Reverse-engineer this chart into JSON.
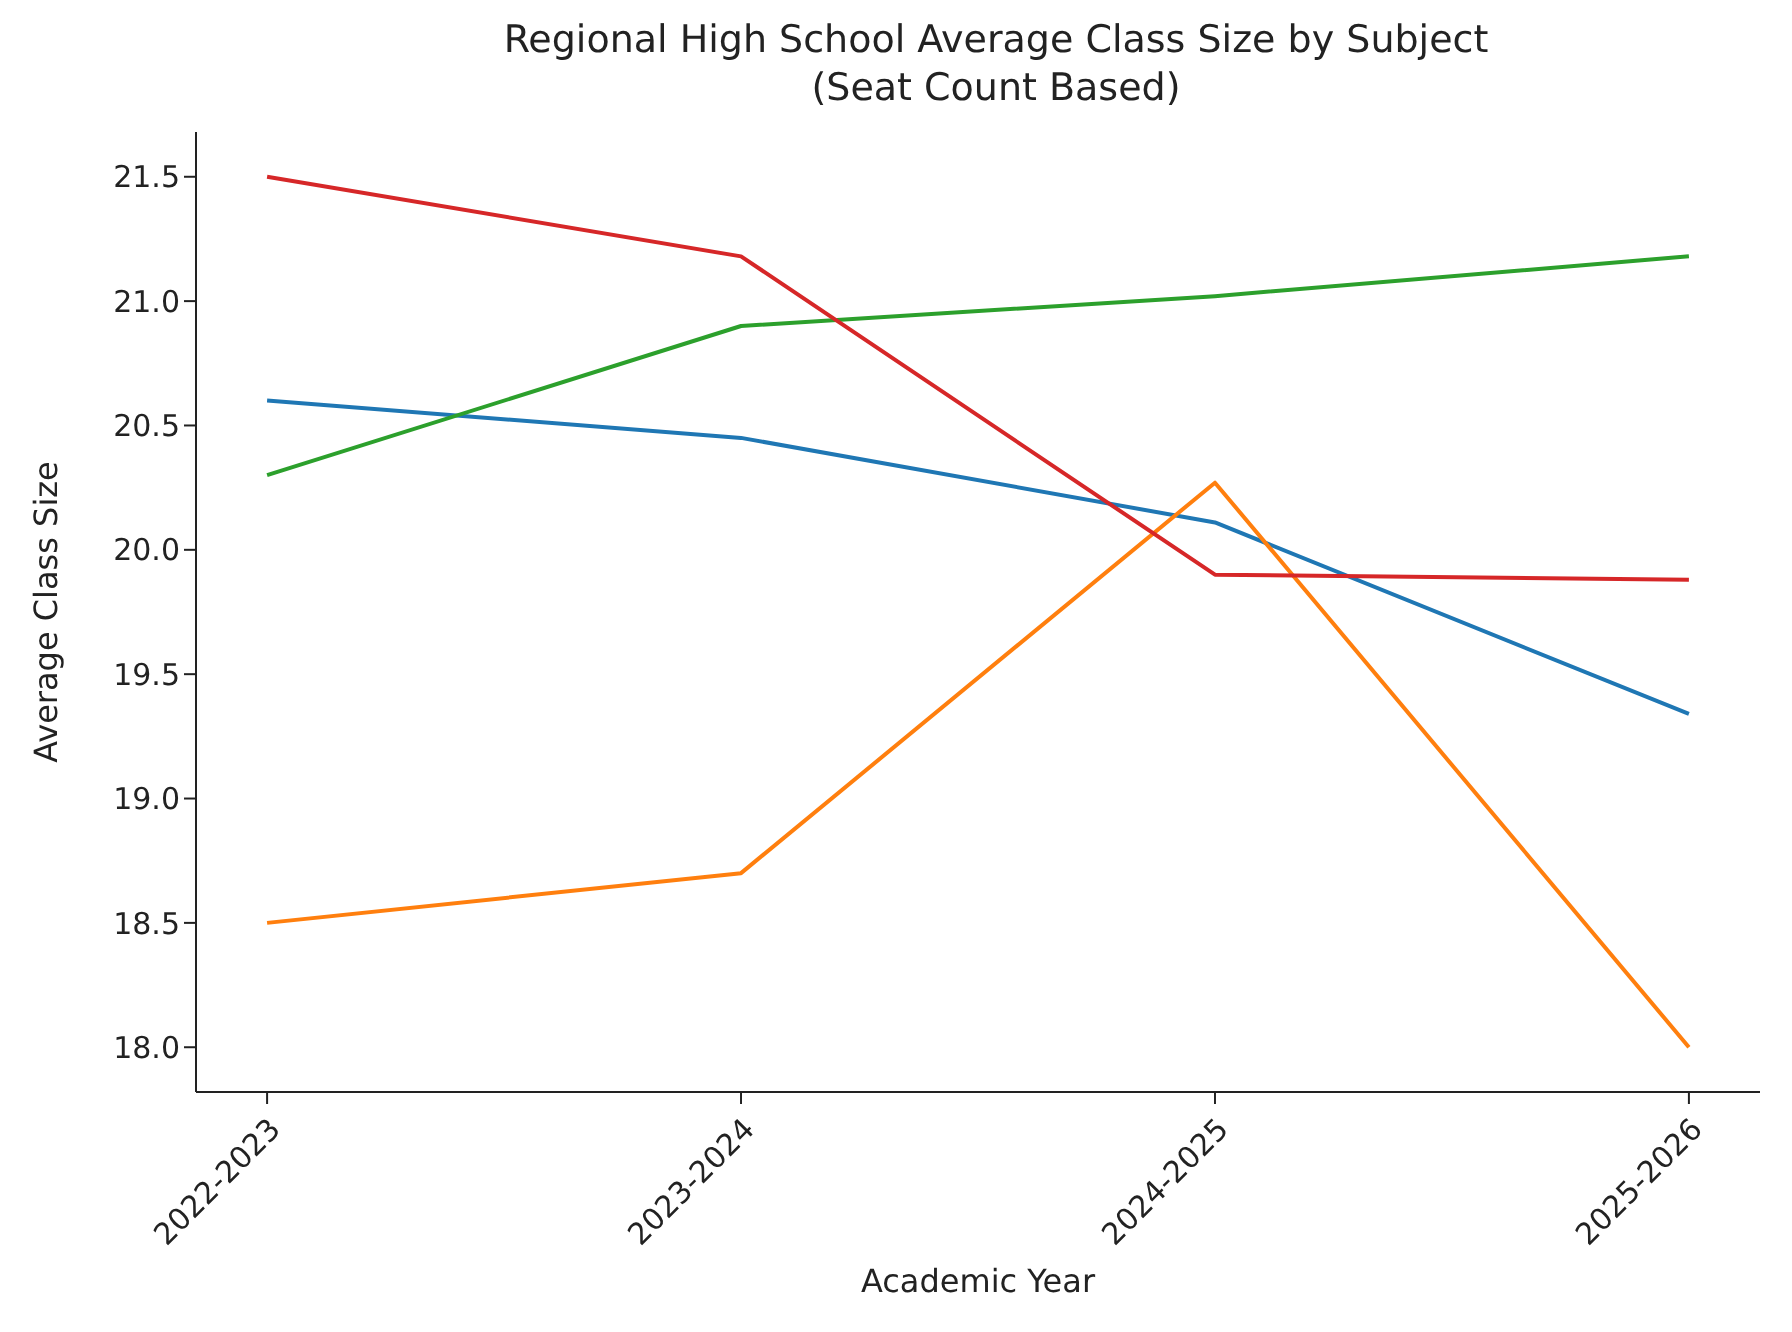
{
  "chart_data": {
    "type": "line",
    "title": "Regional High School Average Class Size by Subject\n(Seat Count Based)",
    "xlabel": "Academic Year",
    "ylabel": "Average Class Size",
    "categories": [
      "2022-2023",
      "2023-2024",
      "2024-2025",
      "2025-2026"
    ],
    "series": [
      {
        "color": "#1f77b4",
        "values": [
          20.6,
          20.45,
          20.11,
          19.34
        ]
      },
      {
        "color": "#ff7f0e",
        "values": [
          18.5,
          18.7,
          20.27,
          18.0
        ]
      },
      {
        "color": "#2ca02c",
        "values": [
          20.3,
          20.9,
          21.02,
          21.18
        ]
      },
      {
        "color": "#d62728",
        "values": [
          21.5,
          21.18,
          19.9,
          19.88
        ]
      }
    ],
    "ylim": [
      17.82,
      21.68
    ],
    "yticks": [
      {
        "value": 18,
        "label": "18.0"
      },
      {
        "value": 18.5,
        "label": "18.5"
      },
      {
        "value": 19,
        "label": "19.0"
      },
      {
        "value": 19.5,
        "label": "19.5"
      },
      {
        "value": 20,
        "label": "20.0"
      },
      {
        "value": 20.5,
        "label": "20.5"
      },
      {
        "value": 21,
        "label": "21.0"
      },
      {
        "value": 21.5,
        "label": "21.5"
      }
    ],
    "grid": false,
    "legend": false,
    "marker": "none",
    "line_style": "solid"
  }
}
